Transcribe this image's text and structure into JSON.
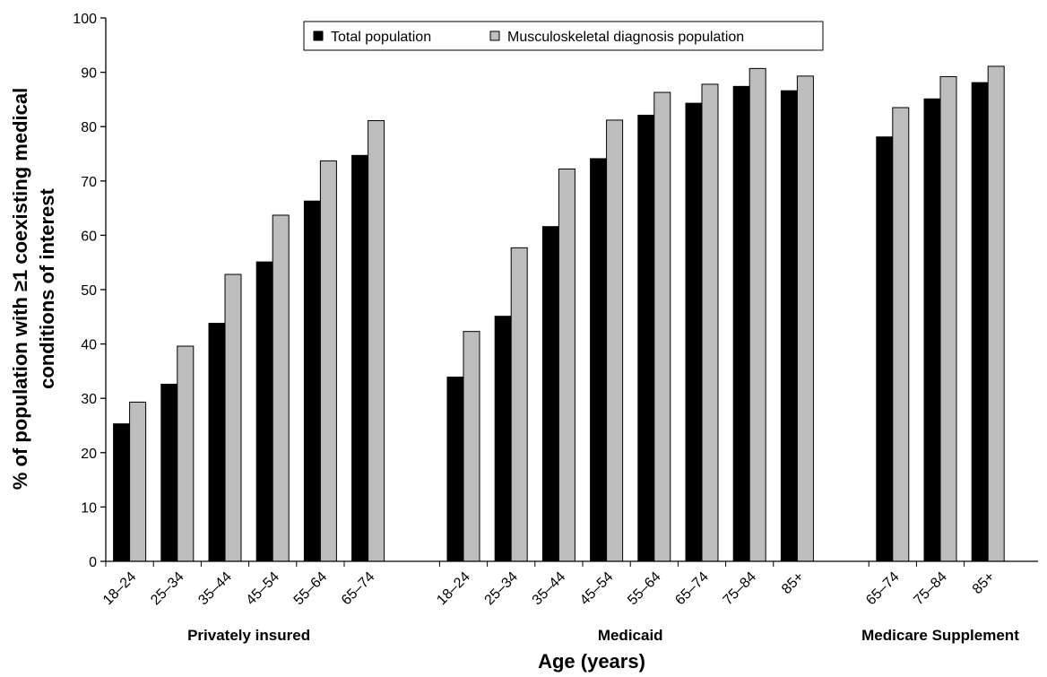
{
  "chart_data": {
    "type": "bar",
    "xlabel": "Age (years)",
    "ylabel_lines": [
      "% of population with ≥1 coexisting medical",
      "conditions of interest"
    ],
    "ylim": [
      0,
      100
    ],
    "yticks": [
      0,
      10,
      20,
      30,
      40,
      50,
      60,
      70,
      80,
      90,
      100
    ],
    "grid": false,
    "legend_position": "top-center",
    "series": [
      {
        "name": "Total population",
        "color": "#000000"
      },
      {
        "name": "Musculoskeletal diagnosis population",
        "color": "#bdbdbd"
      }
    ],
    "groups": [
      {
        "label": "Privately insured",
        "categories": [
          "18–24",
          "25–34",
          "35–44",
          "45–54",
          "55–64",
          "65–74"
        ],
        "values": [
          [
            25.3,
            32.6,
            43.8,
            55.1,
            66.3,
            74.7
          ],
          [
            29.3,
            39.6,
            52.8,
            63.7,
            73.7,
            81.1
          ]
        ]
      },
      {
        "label": "Medicaid",
        "categories": [
          "18–24",
          "25–34",
          "35–44",
          "45–54",
          "55–64",
          "65–74",
          "75–84",
          "85+"
        ],
        "values": [
          [
            33.9,
            45.1,
            61.6,
            74.1,
            82.1,
            84.3,
            87.4,
            86.6
          ],
          [
            42.3,
            57.7,
            72.2,
            81.2,
            86.3,
            87.8,
            90.7,
            89.3
          ]
        ]
      },
      {
        "label": "Medicare Supplement",
        "categories": [
          "65–74",
          "75–84",
          "85+"
        ],
        "values": [
          [
            78.1,
            85.1,
            88.1
          ],
          [
            83.5,
            89.2,
            91.1
          ]
        ]
      }
    ]
  }
}
